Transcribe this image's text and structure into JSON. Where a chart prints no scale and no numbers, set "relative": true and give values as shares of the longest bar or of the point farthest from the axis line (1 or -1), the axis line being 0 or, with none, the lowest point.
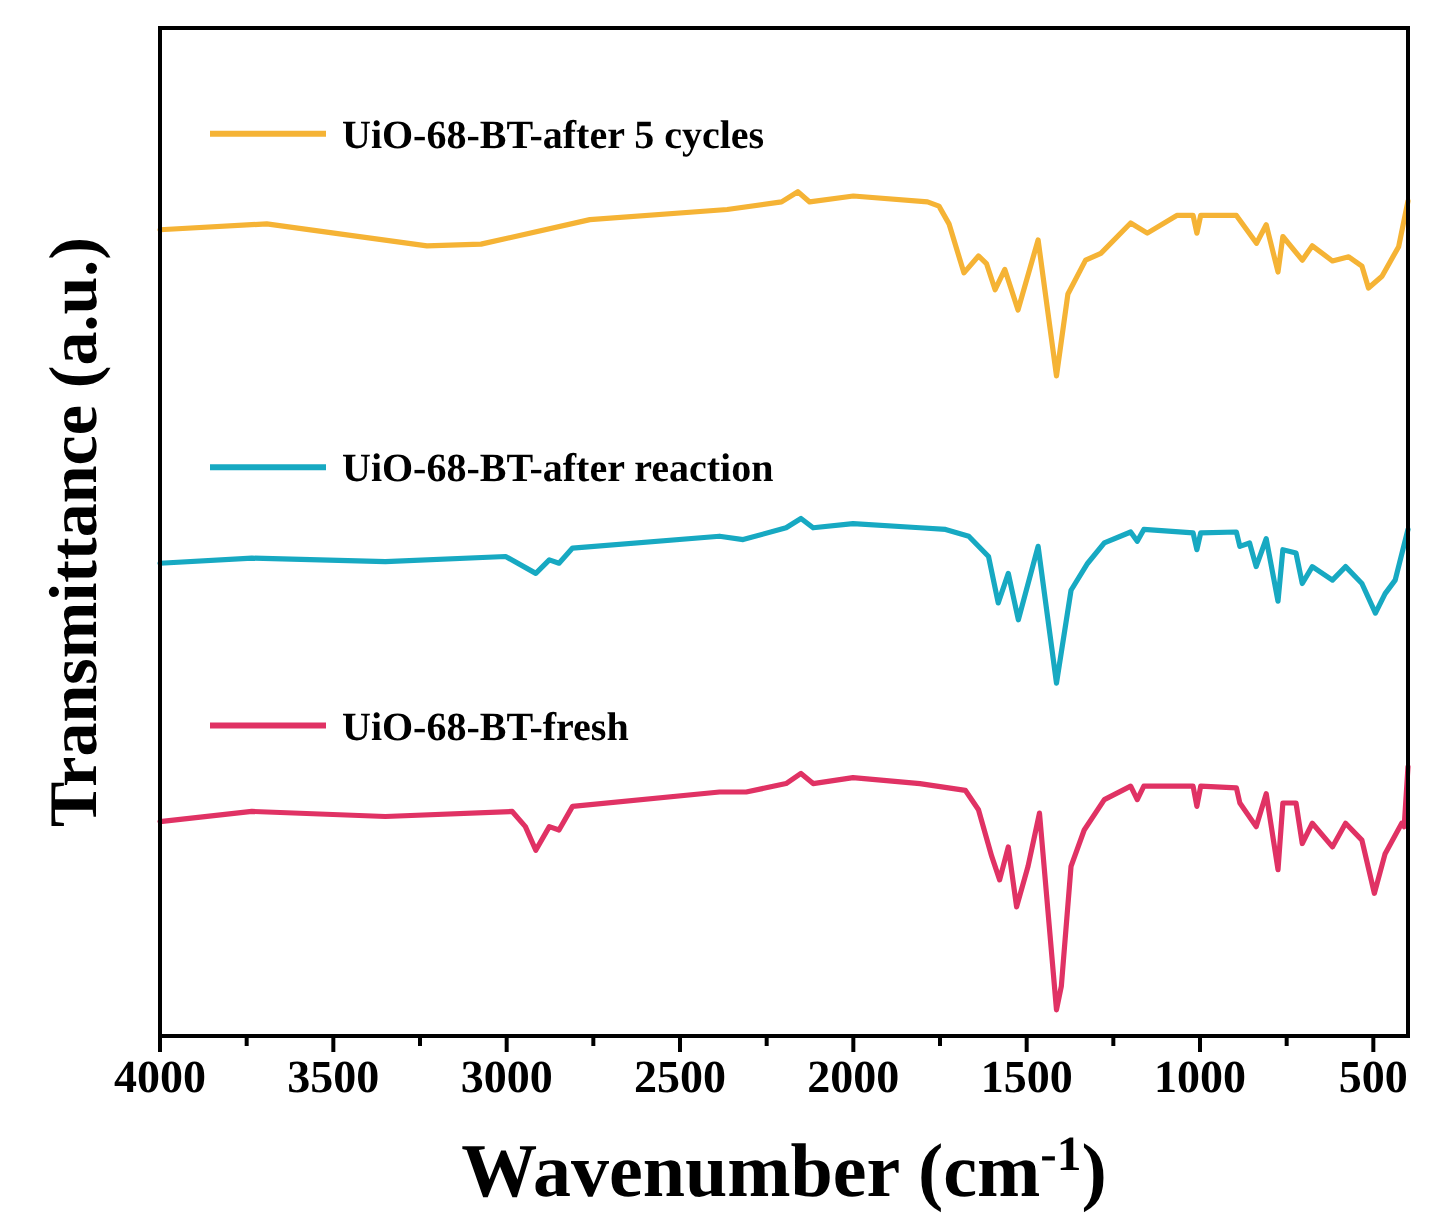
{
  "chart_data": {
    "type": "line",
    "relative": true,
    "xlabel": "Wavenumber (cm$^{-1}$)",
    "ylabel": "Transmittance (a.u.)",
    "legend": "left",
    "grid": false,
    "line_style": "solid",
    "xlim": [
      4000,
      400
    ],
    "xticks": [
      4000,
      {
        "value": 3750,
        "label": null
      },
      3500,
      {
        "value": 3250,
        "label": null
      },
      3000,
      {
        "value": 2750,
        "label": null
      },
      2500,
      {
        "value": 2250,
        "label": null
      },
      2000,
      {
        "value": 1750,
        "label": null
      },
      1500,
      {
        "value": 1250,
        "label": null
      },
      1000,
      {
        "value": 750,
        "label": null
      },
      500
    ],
    "series": [
      {
        "name": "UiO-68-BT-after 5 cycles",
        "color": "#f5b335",
        "x": [
          4000,
          3692,
          3230,
          3074,
          2760,
          2364,
          2207,
          2160,
          2126,
          2000,
          1786,
          1753,
          1724,
          1681,
          1639,
          1616,
          1591,
          1563,
          1525,
          1467,
          1414,
          1381,
          1330,
          1286,
          1200,
          1152,
          1067,
          1020,
          1009,
          998,
          895,
          837,
          809,
          775,
          761,
          705,
          676,
          618,
          571,
          533,
          514,
          475,
          427,
          400
        ],
        "values": [
          0.955,
          0.962,
          0.936,
          0.938,
          0.967,
          0.979,
          0.988,
          1.0,
          0.988,
          0.995,
          0.988,
          0.983,
          0.962,
          0.904,
          0.924,
          0.915,
          0.884,
          0.908,
          0.86,
          0.943,
          0.782,
          0.879,
          0.919,
          0.927,
          0.963,
          0.951,
          0.972,
          0.972,
          0.951,
          0.972,
          0.972,
          0.939,
          0.961,
          0.905,
          0.947,
          0.919,
          0.936,
          0.918,
          0.923,
          0.912,
          0.886,
          0.9,
          0.935,
          0.989
        ]
      },
      {
        "name": "UiO-68-BT-after reaction",
        "color": "#17a9c2",
        "x": [
          4000,
          3735,
          3350,
          3003,
          2916,
          2877,
          2849,
          2810,
          2386,
          2318,
          2194,
          2151,
          2116,
          2001,
          1808,
          1734,
          1667,
          1610,
          1582,
          1553,
          1524,
          1467,
          1414,
          1372,
          1324,
          1276,
          1200,
          1181,
          1162,
          1020,
          1009,
          998,
          895,
          885,
          857,
          838,
          809,
          775,
          761,
          723,
          705,
          676,
          618,
          580,
          533,
          494,
          466,
          437,
          400
        ],
        "values": [
          0.56,
          0.566,
          0.562,
          0.568,
          0.548,
          0.564,
          0.56,
          0.578,
          0.592,
          0.588,
          0.602,
          0.613,
          0.602,
          0.607,
          0.602,
          0.6,
          0.592,
          0.568,
          0.513,
          0.548,
          0.493,
          0.58,
          0.418,
          0.528,
          0.56,
          0.584,
          0.597,
          0.586,
          0.6,
          0.596,
          0.576,
          0.596,
          0.597,
          0.58,
          0.584,
          0.556,
          0.589,
          0.515,
          0.576,
          0.572,
          0.536,
          0.556,
          0.54,
          0.556,
          0.536,
          0.501,
          0.524,
          0.54,
          0.6
        ]
      },
      {
        "name": "UiO-68-BT-fresh",
        "color": "#e03264",
        "x": [
          4000,
          3735,
          3350,
          2984,
          2946,
          2916,
          2877,
          2849,
          2810,
          2386,
          2309,
          2194,
          2151,
          2116,
          2001,
          1808,
          1677,
          1639,
          1601,
          1578,
          1553,
          1529,
          1496,
          1463,
          1414,
          1400,
          1372,
          1334,
          1276,
          1200,
          1181,
          1162,
          1020,
          1009,
          998,
          895,
          885,
          838,
          809,
          775,
          761,
          723,
          705,
          676,
          618,
          580,
          533,
          497,
          466,
          418,
          411,
          400
        ],
        "values": [
          0.254,
          0.266,
          0.26,
          0.266,
          0.248,
          0.22,
          0.248,
          0.244,
          0.272,
          0.289,
          0.289,
          0.299,
          0.311,
          0.299,
          0.306,
          0.299,
          0.291,
          0.268,
          0.213,
          0.185,
          0.224,
          0.153,
          0.201,
          0.264,
          0.031,
          0.059,
          0.201,
          0.244,
          0.28,
          0.296,
          0.28,
          0.296,
          0.296,
          0.272,
          0.296,
          0.294,
          0.276,
          0.248,
          0.287,
          0.197,
          0.276,
          0.276,
          0.228,
          0.252,
          0.224,
          0.252,
          0.232,
          0.169,
          0.216,
          0.252,
          0.248,
          0.319
        ]
      }
    ]
  }
}
